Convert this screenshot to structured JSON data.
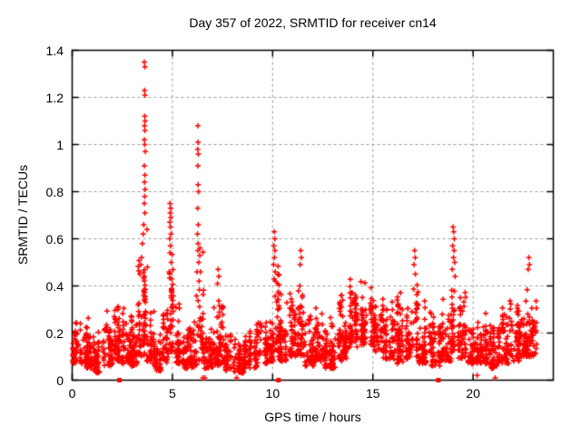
{
  "chart_data": {
    "type": "scatter",
    "title": "Day 357 of 2022, SRMTID for receiver cn14",
    "xlabel": "GPS time / hours",
    "ylabel": "SRMTID / TECUs",
    "xlim": [
      0,
      24
    ],
    "ylim": [
      0,
      1.4
    ],
    "xticks": [
      {
        "v": 0,
        "label": "0"
      },
      {
        "v": 5,
        "label": "5"
      },
      {
        "v": 10,
        "label": "10"
      },
      {
        "v": 15,
        "label": "15"
      },
      {
        "v": 20,
        "label": "20"
      }
    ],
    "yticks": [
      {
        "v": 0,
        "label": "0"
      },
      {
        "v": 0.2,
        "label": "0.2"
      },
      {
        "v": 0.4,
        "label": "0.4"
      },
      {
        "v": 0.6,
        "label": "0.6"
      },
      {
        "v": 0.8,
        "label": "0.8"
      },
      {
        "v": 1,
        "label": "1"
      },
      {
        "v": 1.2,
        "label": "1.2"
      },
      {
        "v": 1.4,
        "label": "1.4"
      }
    ],
    "grid": true,
    "legend": "none",
    "colors": {
      "marker": "#ff0000",
      "frame": "#000000",
      "gridline": "#9b9b9b",
      "background": "#ffffff",
      "text": "#000000"
    },
    "marker": "plus",
    "peaks": [
      [
        3.6,
        1.35
      ],
      [
        3.63,
        1.33
      ],
      [
        3.62,
        1.22
      ],
      [
        6.27,
        1.08
      ],
      [
        4.88,
        0.75
      ],
      [
        19.0,
        0.65
      ],
      [
        10.08,
        0.63
      ],
      [
        7.3,
        0.47
      ],
      [
        17.08,
        0.55
      ],
      [
        11.4,
        0.55
      ],
      [
        22.78,
        0.52
      ],
      [
        14.6,
        0.47
      ]
    ],
    "spike_points": [
      [
        3.6,
        1.35
      ],
      [
        3.63,
        1.33
      ],
      [
        3.61,
        1.23
      ],
      [
        3.63,
        1.21
      ],
      [
        3.62,
        1.12
      ],
      [
        3.64,
        1.1
      ],
      [
        3.61,
        1.08
      ],
      [
        3.63,
        1.06
      ],
      [
        3.6,
        1.02
      ],
      [
        3.62,
        1.0
      ],
      [
        3.65,
        0.97
      ],
      [
        3.6,
        0.91
      ],
      [
        3.63,
        0.87
      ],
      [
        3.61,
        0.84
      ],
      [
        3.64,
        0.81
      ],
      [
        3.62,
        0.78
      ],
      [
        3.6,
        0.75
      ],
      [
        3.63,
        0.71
      ],
      [
        3.57,
        0.66
      ],
      [
        3.54,
        0.62
      ],
      [
        3.5,
        0.58
      ],
      [
        3.46,
        0.52
      ],
      [
        3.42,
        0.49
      ],
      [
        3.37,
        0.45
      ],
      [
        4.88,
        0.75
      ],
      [
        4.91,
        0.73
      ],
      [
        4.89,
        0.71
      ],
      [
        4.92,
        0.69
      ],
      [
        4.87,
        0.67
      ],
      [
        4.9,
        0.65
      ],
      [
        4.93,
        0.62
      ],
      [
        4.86,
        0.6
      ],
      [
        4.9,
        0.57
      ],
      [
        4.88,
        0.54
      ],
      [
        4.94,
        0.5
      ],
      [
        4.84,
        0.46
      ],
      [
        4.96,
        0.43
      ],
      [
        6.27,
        1.08
      ],
      [
        6.28,
        1.01
      ],
      [
        6.26,
        0.98
      ],
      [
        6.29,
        0.96
      ],
      [
        6.27,
        0.91
      ],
      [
        6.28,
        0.83
      ],
      [
        6.3,
        0.8
      ],
      [
        6.26,
        0.73
      ],
      [
        6.29,
        0.66
      ],
      [
        6.25,
        0.62
      ],
      [
        6.28,
        0.58
      ],
      [
        6.27,
        0.55
      ],
      [
        6.31,
        0.5
      ],
      [
        6.23,
        0.46
      ],
      [
        6.33,
        0.42
      ],
      [
        10.08,
        0.63
      ],
      [
        10.11,
        0.6
      ],
      [
        10.06,
        0.57
      ],
      [
        10.12,
        0.55
      ],
      [
        10.09,
        0.52
      ],
      [
        10.05,
        0.49
      ],
      [
        10.13,
        0.46
      ],
      [
        10.07,
        0.43
      ],
      [
        19.0,
        0.65
      ],
      [
        19.03,
        0.63
      ],
      [
        19.06,
        0.6
      ],
      [
        18.98,
        0.57
      ],
      [
        19.05,
        0.55
      ],
      [
        19.02,
        0.52
      ],
      [
        19.08,
        0.5
      ],
      [
        18.96,
        0.47
      ],
      [
        19.1,
        0.44
      ],
      [
        17.08,
        0.55
      ],
      [
        17.11,
        0.52
      ],
      [
        17.05,
        0.49
      ],
      [
        17.12,
        0.45
      ],
      [
        11.4,
        0.55
      ],
      [
        11.43,
        0.52
      ],
      [
        11.37,
        0.49
      ],
      [
        7.28,
        0.47
      ],
      [
        7.32,
        0.44
      ],
      [
        7.25,
        0.41
      ],
      [
        22.78,
        0.52
      ],
      [
        22.81,
        0.49
      ],
      [
        22.75,
        0.47
      ]
    ],
    "cloud_bands": [
      [
        0.0,
        0.5,
        0.07,
        0.27,
        55
      ],
      [
        0.5,
        1.0,
        0.05,
        0.3,
        60
      ],
      [
        1.0,
        1.5,
        0.03,
        0.22,
        55
      ],
      [
        1.5,
        2.0,
        0.06,
        0.32,
        60
      ],
      [
        2.0,
        2.45,
        0.08,
        0.38,
        55
      ],
      [
        2.45,
        2.9,
        0.07,
        0.35,
        50
      ],
      [
        2.9,
        3.3,
        0.06,
        0.35,
        50
      ],
      [
        3.3,
        3.58,
        0.1,
        0.55,
        40
      ],
      [
        3.58,
        3.75,
        0.15,
        0.68,
        30
      ],
      [
        3.75,
        4.1,
        0.07,
        0.32,
        40
      ],
      [
        4.1,
        4.5,
        0.04,
        0.2,
        45
      ],
      [
        4.5,
        4.82,
        0.07,
        0.38,
        40
      ],
      [
        4.82,
        5.05,
        0.12,
        0.65,
        35
      ],
      [
        5.05,
        5.5,
        0.07,
        0.35,
        50
      ],
      [
        5.5,
        5.95,
        0.05,
        0.26,
        55
      ],
      [
        5.95,
        6.2,
        0.05,
        0.3,
        30
      ],
      [
        6.2,
        6.55,
        0.08,
        0.6,
        40
      ],
      [
        6.55,
        7.0,
        0.05,
        0.25,
        50
      ],
      [
        7.0,
        7.55,
        0.06,
        0.4,
        60
      ],
      [
        7.55,
        8.0,
        0.04,
        0.22,
        50
      ],
      [
        8.0,
        8.6,
        0.03,
        0.2,
        65
      ],
      [
        8.6,
        9.2,
        0.05,
        0.25,
        65
      ],
      [
        9.2,
        9.75,
        0.07,
        0.3,
        60
      ],
      [
        9.75,
        10.05,
        0.08,
        0.36,
        35
      ],
      [
        10.05,
        10.3,
        0.12,
        0.55,
        30
      ],
      [
        10.3,
        10.8,
        0.08,
        0.38,
        55
      ],
      [
        10.8,
        11.3,
        0.1,
        0.48,
        55
      ],
      [
        11.3,
        11.55,
        0.1,
        0.5,
        30
      ],
      [
        11.55,
        12.1,
        0.06,
        0.3,
        60
      ],
      [
        12.1,
        12.6,
        0.08,
        0.33,
        55
      ],
      [
        12.6,
        13.2,
        0.05,
        0.28,
        65
      ],
      [
        13.2,
        13.8,
        0.08,
        0.42,
        65
      ],
      [
        13.8,
        14.4,
        0.14,
        0.46,
        70
      ],
      [
        14.4,
        15.0,
        0.15,
        0.47,
        70
      ],
      [
        15.0,
        15.55,
        0.12,
        0.44,
        65
      ],
      [
        15.55,
        16.1,
        0.09,
        0.38,
        60
      ],
      [
        16.1,
        16.6,
        0.07,
        0.42,
        55
      ],
      [
        16.6,
        17.0,
        0.09,
        0.38,
        45
      ],
      [
        17.0,
        17.3,
        0.1,
        0.5,
        30
      ],
      [
        17.3,
        17.85,
        0.07,
        0.34,
        55
      ],
      [
        17.85,
        18.4,
        0.06,
        0.33,
        55
      ],
      [
        18.4,
        18.9,
        0.08,
        0.36,
        55
      ],
      [
        18.9,
        19.15,
        0.12,
        0.6,
        30
      ],
      [
        19.15,
        19.7,
        0.09,
        0.38,
        55
      ],
      [
        19.7,
        20.25,
        0.07,
        0.33,
        55
      ],
      [
        20.25,
        20.75,
        0.07,
        0.32,
        55
      ],
      [
        20.75,
        21.25,
        0.05,
        0.3,
        55
      ],
      [
        21.25,
        21.75,
        0.07,
        0.34,
        55
      ],
      [
        21.75,
        22.3,
        0.08,
        0.36,
        60
      ],
      [
        22.3,
        22.65,
        0.1,
        0.38,
        40
      ],
      [
        22.65,
        22.95,
        0.1,
        0.48,
        35
      ],
      [
        22.95,
        23.15,
        0.1,
        0.4,
        20
      ]
    ],
    "axis_square_markers_t": [
      2.36,
      10.29,
      18.27
    ],
    "near_zero_points": [
      [
        6.52,
        0.01
      ],
      [
        6.62,
        0.01
      ],
      [
        8.2,
        0.01
      ],
      [
        20.2,
        0.02
      ],
      [
        21.1,
        0.01
      ]
    ]
  }
}
